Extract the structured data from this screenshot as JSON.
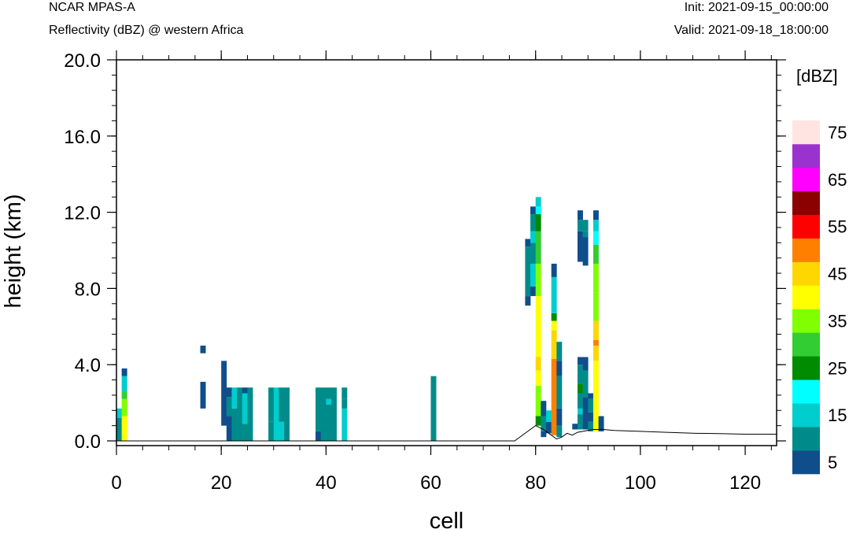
{
  "header": {
    "model": "NCAR MPAS-A",
    "field": "Reflectivity (dBZ) @ western Africa",
    "init": "Init: 2021-09-15_00:00:00",
    "valid": "Valid: 2021-09-18_18:00:00"
  },
  "chart_data": {
    "type": "heatmap",
    "xlabel": "cell",
    "ylabel": "height (km)",
    "xlim": [
      0,
      126
    ],
    "ylim": [
      0,
      20
    ],
    "xticks": [
      0,
      20,
      40,
      60,
      80,
      100,
      120
    ],
    "yticks": [
      0.0,
      4.0,
      8.0,
      12.0,
      16.0,
      20.0
    ],
    "ytick_labels": [
      "0.0",
      "4.0",
      "8.0",
      "12.0",
      "16.0",
      "20.0"
    ],
    "colorbar": {
      "units": "[dBZ]",
      "levels": [
        5,
        10,
        15,
        20,
        25,
        30,
        35,
        40,
        45,
        50,
        55,
        60,
        65,
        70,
        75
      ],
      "labels": [
        "5",
        "15",
        "25",
        "35",
        "45",
        "55",
        "65",
        "75"
      ],
      "colors": [
        "#104E8B",
        "#008B8B",
        "#00CDCD",
        "#00FFFF",
        "#008B00",
        "#32CD32",
        "#7FFF00",
        "#FFFF00",
        "#FFD700",
        "#FF7F00",
        "#FF0000",
        "#8B0000",
        "#FF00FF",
        "#9A32CD",
        "#FFE4E1"
      ]
    },
    "columns": [
      {
        "x": 0.5,
        "cells": [
          [
            0.0,
            1.2,
            10
          ],
          [
            1.2,
            1.7,
            15
          ]
        ]
      },
      {
        "x": 1.5,
        "cells": [
          [
            0.0,
            1.3,
            40
          ],
          [
            1.3,
            2.2,
            35
          ],
          [
            2.2,
            2.6,
            30
          ],
          [
            2.6,
            3.4,
            15
          ],
          [
            3.4,
            3.8,
            5
          ]
        ]
      },
      {
        "x": 16.5,
        "cells": [
          [
            1.7,
            3.1,
            5
          ],
          [
            4.6,
            5.0,
            5
          ]
        ]
      },
      {
        "x": 20.5,
        "cells": [
          [
            0.8,
            4.2,
            5
          ]
        ]
      },
      {
        "x": 21.5,
        "cells": [
          [
            0.0,
            1.3,
            5
          ],
          [
            1.3,
            2.3,
            10
          ],
          [
            2.3,
            2.8,
            5
          ]
        ]
      },
      {
        "x": 22.5,
        "cells": [
          [
            0.0,
            1.7,
            10
          ],
          [
            1.7,
            2.8,
            15
          ]
        ]
      },
      {
        "x": 23.5,
        "cells": [
          [
            0.0,
            2.8,
            10
          ]
        ]
      },
      {
        "x": 24.5,
        "cells": [
          [
            0.0,
            0.9,
            10
          ],
          [
            0.9,
            2.5,
            15
          ],
          [
            2.5,
            2.8,
            5
          ]
        ]
      },
      {
        "x": 25.5,
        "cells": [
          [
            0.0,
            2.8,
            10
          ]
        ]
      },
      {
        "x": 29.5,
        "cells": [
          [
            0.0,
            1.0,
            10
          ],
          [
            1.0,
            2.8,
            10
          ]
        ]
      },
      {
        "x": 30.5,
        "cells": [
          [
            0.0,
            2.8,
            15
          ]
        ]
      },
      {
        "x": 31.5,
        "cells": [
          [
            0.0,
            1.0,
            15
          ],
          [
            1.0,
            2.8,
            10
          ]
        ]
      },
      {
        "x": 32.5,
        "cells": [
          [
            0.0,
            2.8,
            10
          ]
        ]
      },
      {
        "x": 38.5,
        "cells": [
          [
            0.0,
            0.5,
            5
          ],
          [
            0.5,
            2.8,
            10
          ]
        ]
      },
      {
        "x": 39.5,
        "cells": [
          [
            0.0,
            2.8,
            10
          ]
        ]
      },
      {
        "x": 40.5,
        "cells": [
          [
            0.0,
            1.9,
            10
          ],
          [
            1.9,
            2.2,
            15
          ],
          [
            2.2,
            2.8,
            10
          ]
        ]
      },
      {
        "x": 41.5,
        "cells": [
          [
            0.0,
            2.8,
            10
          ]
        ]
      },
      {
        "x": 43.5,
        "cells": [
          [
            0.0,
            1.7,
            15
          ],
          [
            1.7,
            2.2,
            10
          ],
          [
            2.2,
            2.8,
            10
          ]
        ]
      },
      {
        "x": 60.5,
        "cells": [
          [
            0.0,
            3.4,
            10
          ]
        ]
      },
      {
        "x": 78.5,
        "cells": [
          [
            7.1,
            7.6,
            5
          ],
          [
            7.6,
            10.2,
            10
          ],
          [
            10.2,
            10.6,
            5
          ]
        ]
      },
      {
        "x": 79.5,
        "cells": [
          [
            7.6,
            8.1,
            5
          ],
          [
            8.1,
            9.3,
            15
          ],
          [
            9.3,
            10.4,
            10
          ],
          [
            10.4,
            11.0,
            15
          ],
          [
            11.0,
            11.9,
            10
          ],
          [
            11.9,
            12.3,
            5
          ]
        ]
      },
      {
        "x": 80.5,
        "cells": [
          [
            0.8,
            1.3,
            25
          ],
          [
            1.3,
            2.9,
            35
          ],
          [
            2.9,
            3.7,
            40
          ],
          [
            3.7,
            4.4,
            45
          ],
          [
            4.4,
            7.6,
            40
          ],
          [
            7.6,
            9.3,
            35
          ],
          [
            9.3,
            11.0,
            30
          ],
          [
            11.0,
            11.9,
            25
          ],
          [
            11.9,
            12.3,
            20
          ],
          [
            12.3,
            12.8,
            15
          ]
        ]
      },
      {
        "x": 81.5,
        "cells": [
          [
            0.2,
            0.5,
            5
          ],
          [
            0.5,
            1.3,
            10
          ],
          [
            1.3,
            2.1,
            5
          ]
        ]
      },
      {
        "x": 82.5,
        "cells": [
          [
            0.4,
            1.0,
            5
          ],
          [
            1.0,
            1.6,
            15
          ]
        ]
      },
      {
        "x": 83.5,
        "cells": [
          [
            0.3,
            1.3,
            50
          ],
          [
            1.3,
            4.3,
            50
          ],
          [
            4.3,
            5.8,
            45
          ],
          [
            5.8,
            6.3,
            40
          ],
          [
            6.3,
            6.7,
            25
          ],
          [
            6.7,
            8.6,
            15
          ],
          [
            8.6,
            9.3,
            5
          ]
        ]
      },
      {
        "x": 84.5,
        "cells": [
          [
            0.2,
            0.8,
            10
          ],
          [
            0.8,
            1.7,
            5
          ],
          [
            1.7,
            3.4,
            10
          ],
          [
            3.4,
            4.2,
            5
          ],
          [
            4.2,
            5.2,
            10
          ]
        ]
      },
      {
        "x": 87.5,
        "cells": [
          [
            0.6,
            0.9,
            5
          ]
        ]
      },
      {
        "x": 88.5,
        "cells": [
          [
            0.6,
            1.4,
            10
          ],
          [
            1.4,
            1.7,
            15
          ],
          [
            1.7,
            2.5,
            10
          ],
          [
            2.5,
            3.0,
            25
          ],
          [
            3.0,
            4.0,
            10
          ],
          [
            4.0,
            4.4,
            5
          ],
          [
            9.4,
            11.0,
            5
          ],
          [
            11.0,
            11.6,
            10
          ],
          [
            11.6,
            12.1,
            5
          ]
        ]
      },
      {
        "x": 89.5,
        "cells": [
          [
            0.6,
            1.2,
            5
          ],
          [
            1.2,
            2.3,
            5
          ],
          [
            2.3,
            3.7,
            10
          ],
          [
            3.7,
            4.4,
            5
          ],
          [
            9.2,
            10.7,
            5
          ],
          [
            10.7,
            11.0,
            10
          ],
          [
            11.0,
            11.6,
            10
          ]
        ]
      },
      {
        "x": 90.5,
        "cells": [
          [
            0.5,
            1.0,
            10
          ],
          [
            1.0,
            1.5,
            5
          ],
          [
            1.5,
            2.2,
            10
          ],
          [
            2.2,
            2.5,
            5
          ]
        ]
      },
      {
        "x": 91.5,
        "cells": [
          [
            0.5,
            1.6,
            40
          ],
          [
            1.6,
            4.2,
            40
          ],
          [
            4.2,
            5.0,
            45
          ],
          [
            5.0,
            5.3,
            50
          ],
          [
            5.3,
            6.3,
            45
          ],
          [
            6.3,
            7.8,
            35
          ],
          [
            7.8,
            9.3,
            35
          ],
          [
            9.3,
            10.3,
            30
          ],
          [
            10.3,
            11.0,
            20
          ],
          [
            11.0,
            11.6,
            15
          ],
          [
            11.6,
            12.1,
            5
          ]
        ]
      },
      {
        "x": 92.5,
        "cells": [
          [
            0.5,
            1.3,
            5
          ]
        ]
      }
    ],
    "terrain": [
      [
        0,
        0.0
      ],
      [
        76,
        0.0
      ],
      [
        78.5,
        0.5
      ],
      [
        80,
        0.8
      ],
      [
        81.5,
        0.6
      ],
      [
        83,
        0.3
      ],
      [
        84,
        0.1
      ],
      [
        85,
        0.2
      ],
      [
        86,
        0.4
      ],
      [
        87,
        0.3
      ],
      [
        88,
        0.45
      ],
      [
        89,
        0.5
      ],
      [
        91,
        0.6
      ],
      [
        93,
        0.6
      ],
      [
        95,
        0.55
      ],
      [
        100,
        0.5
      ],
      [
        105,
        0.45
      ],
      [
        110,
        0.4
      ],
      [
        115,
        0.38
      ],
      [
        120,
        0.35
      ],
      [
        126,
        0.35
      ]
    ]
  }
}
